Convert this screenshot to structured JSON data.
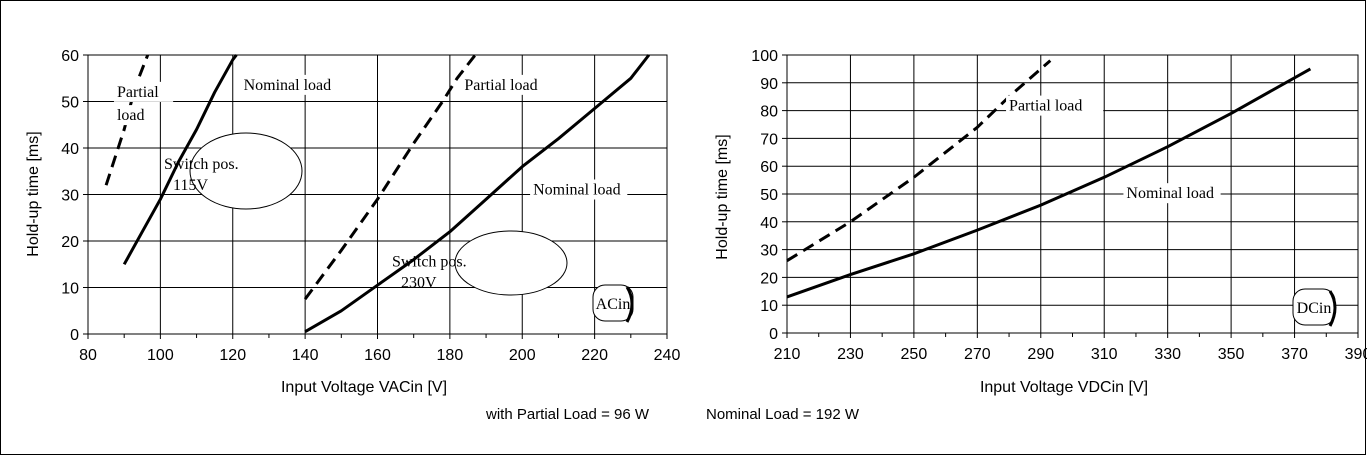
{
  "footer": {
    "partial": "with Partial Load = 96 W",
    "nominal": "Nominal Load = 192 W"
  },
  "chart_data": [
    {
      "type": "line",
      "xlabel": "Input Voltage VACin [V]",
      "ylabel": "Hold-up time [ms]",
      "xlim": [
        80,
        240
      ],
      "ylim": [
        0,
        60
      ],
      "xticks": [
        80,
        100,
        120,
        140,
        160,
        180,
        200,
        220,
        240
      ],
      "yticks": [
        0,
        10,
        20,
        30,
        40,
        50,
        60
      ],
      "grid": true,
      "badge": "ACin",
      "series": [
        {
          "style": "dashed",
          "x": [
            85,
            90,
            93,
            96.5
          ],
          "y": [
            32,
            44,
            53,
            60
          ]
        },
        {
          "style": "solid",
          "x": [
            90,
            95,
            100,
            105,
            110,
            115,
            120,
            121
          ],
          "y": [
            15,
            22,
            29,
            37,
            44,
            52,
            59,
            60
          ]
        },
        {
          "style": "dashed",
          "x": [
            140,
            150,
            160,
            170,
            178,
            182,
            187
          ],
          "y": [
            7.5,
            18,
            29,
            41,
            50,
            55,
            60
          ]
        },
        {
          "style": "solid",
          "x": [
            140,
            150,
            160,
            170,
            180,
            190,
            200,
            210,
            220,
            230,
            235
          ],
          "y": [
            0.5,
            5,
            10.5,
            16,
            22,
            29,
            36,
            42,
            48.5,
            55,
            60
          ]
        }
      ],
      "annotations": [
        {
          "text": "Partial",
          "x": 88,
          "y": 51
        },
        {
          "text": "load",
          "x": 88,
          "y": 46
        },
        {
          "text": "Nominal load",
          "x": 123,
          "y": 52.5
        },
        {
          "text": "Partial load",
          "x": 184,
          "y": 52.5
        },
        {
          "text": "Nominal load",
          "x": 203,
          "y": 30
        },
        {
          "text": "Switch pos.",
          "x": 101,
          "y": 35.5
        },
        {
          "text": "115V",
          "x": 103.5,
          "y": 31
        },
        {
          "text": "Switch pos.",
          "x": 164,
          "y": 14.5
        },
        {
          "text": "230V",
          "x": 166.5,
          "y": 10
        }
      ]
    },
    {
      "type": "line",
      "xlabel": "Input Voltage VDCin [V]",
      "ylabel": "Hold-up time [ms]",
      "xlim": [
        210,
        390
      ],
      "ylim": [
        0,
        100
      ],
      "xticks": [
        210,
        230,
        250,
        270,
        290,
        310,
        330,
        350,
        370,
        390
      ],
      "yticks": [
        0,
        10,
        20,
        30,
        40,
        50,
        60,
        70,
        80,
        90,
        100
      ],
      "grid": true,
      "badge": "DCin",
      "series": [
        {
          "style": "dashed",
          "x": [
            210,
            230,
            250,
            270,
            280,
            290,
            293
          ],
          "y": [
            26,
            40,
            56,
            74,
            85,
            95,
            98
          ]
        },
        {
          "style": "solid",
          "x": [
            210,
            230,
            250,
            270,
            290,
            310,
            330,
            350,
            375
          ],
          "y": [
            13,
            21,
            28.5,
            37,
            46,
            56,
            67,
            79,
            95
          ]
        }
      ],
      "annotations": [
        {
          "text": "Partial load",
          "x": 280,
          "y": 80
        },
        {
          "text": "Nominal load",
          "x": 317,
          "y": 48.5
        }
      ]
    }
  ]
}
